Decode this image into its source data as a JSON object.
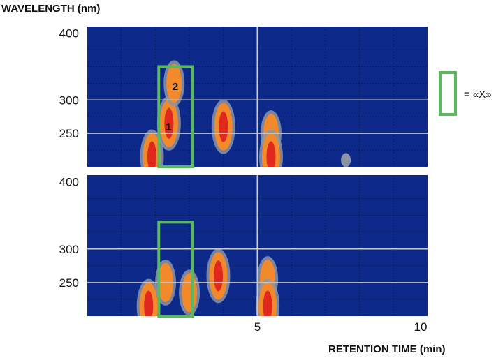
{
  "chart_data": [
    {
      "type": "heatmap",
      "ylabel": "WAVELENGTH (nm)",
      "xlabel": "",
      "xlim": [
        0,
        10
      ],
      "ylim": [
        200,
        410
      ],
      "y_ticks": [
        "400",
        "300",
        "250"
      ],
      "grid": true,
      "highlight_box": {
        "x": [
          2.1,
          3.1
        ],
        "y": [
          200,
          350
        ]
      },
      "peak_labels": [
        {
          "text": "1",
          "x": 2.3,
          "y": 260
        },
        {
          "text": "2",
          "x": 2.5,
          "y": 320
        }
      ],
      "blobs": [
        {
          "x": 2.4,
          "y": 265,
          "level": "high"
        },
        {
          "x": 2.55,
          "y": 325,
          "level": "mid"
        },
        {
          "x": 1.9,
          "y": 215,
          "level": "high"
        },
        {
          "x": 4.0,
          "y": 260,
          "level": "high"
        },
        {
          "x": 5.4,
          "y": 250,
          "level": "mid"
        },
        {
          "x": 5.4,
          "y": 215,
          "level": "high"
        },
        {
          "x": 7.6,
          "y": 210,
          "level": "low"
        }
      ]
    },
    {
      "type": "heatmap",
      "ylabel": "",
      "xlabel": "RETENTION TIME (min)",
      "xlim": [
        0,
        10
      ],
      "ylim": [
        200,
        410
      ],
      "x_ticks": [
        "5",
        "10"
      ],
      "y_ticks": [
        "400",
        "300",
        "250"
      ],
      "grid": true,
      "highlight_box": {
        "x": [
          2.1,
          3.1
        ],
        "y": [
          200,
          340
        ]
      },
      "blobs": [
        {
          "x": 2.3,
          "y": 250,
          "level": "mid"
        },
        {
          "x": 1.8,
          "y": 215,
          "level": "high"
        },
        {
          "x": 3.0,
          "y": 235,
          "level": "mid"
        },
        {
          "x": 3.85,
          "y": 260,
          "level": "high"
        },
        {
          "x": 5.3,
          "y": 255,
          "level": "mid"
        },
        {
          "x": 5.3,
          "y": 215,
          "level": "high"
        }
      ]
    }
  ],
  "legend": {
    "text": "= «X»",
    "color": "#5cb85c"
  },
  "colors": {
    "background": "#0d2a8a",
    "low": "#8c95a8",
    "mid": "#f28a2c",
    "high": "#e0281e",
    "box": "#5cb85c",
    "grid": "#c8c8c8"
  }
}
